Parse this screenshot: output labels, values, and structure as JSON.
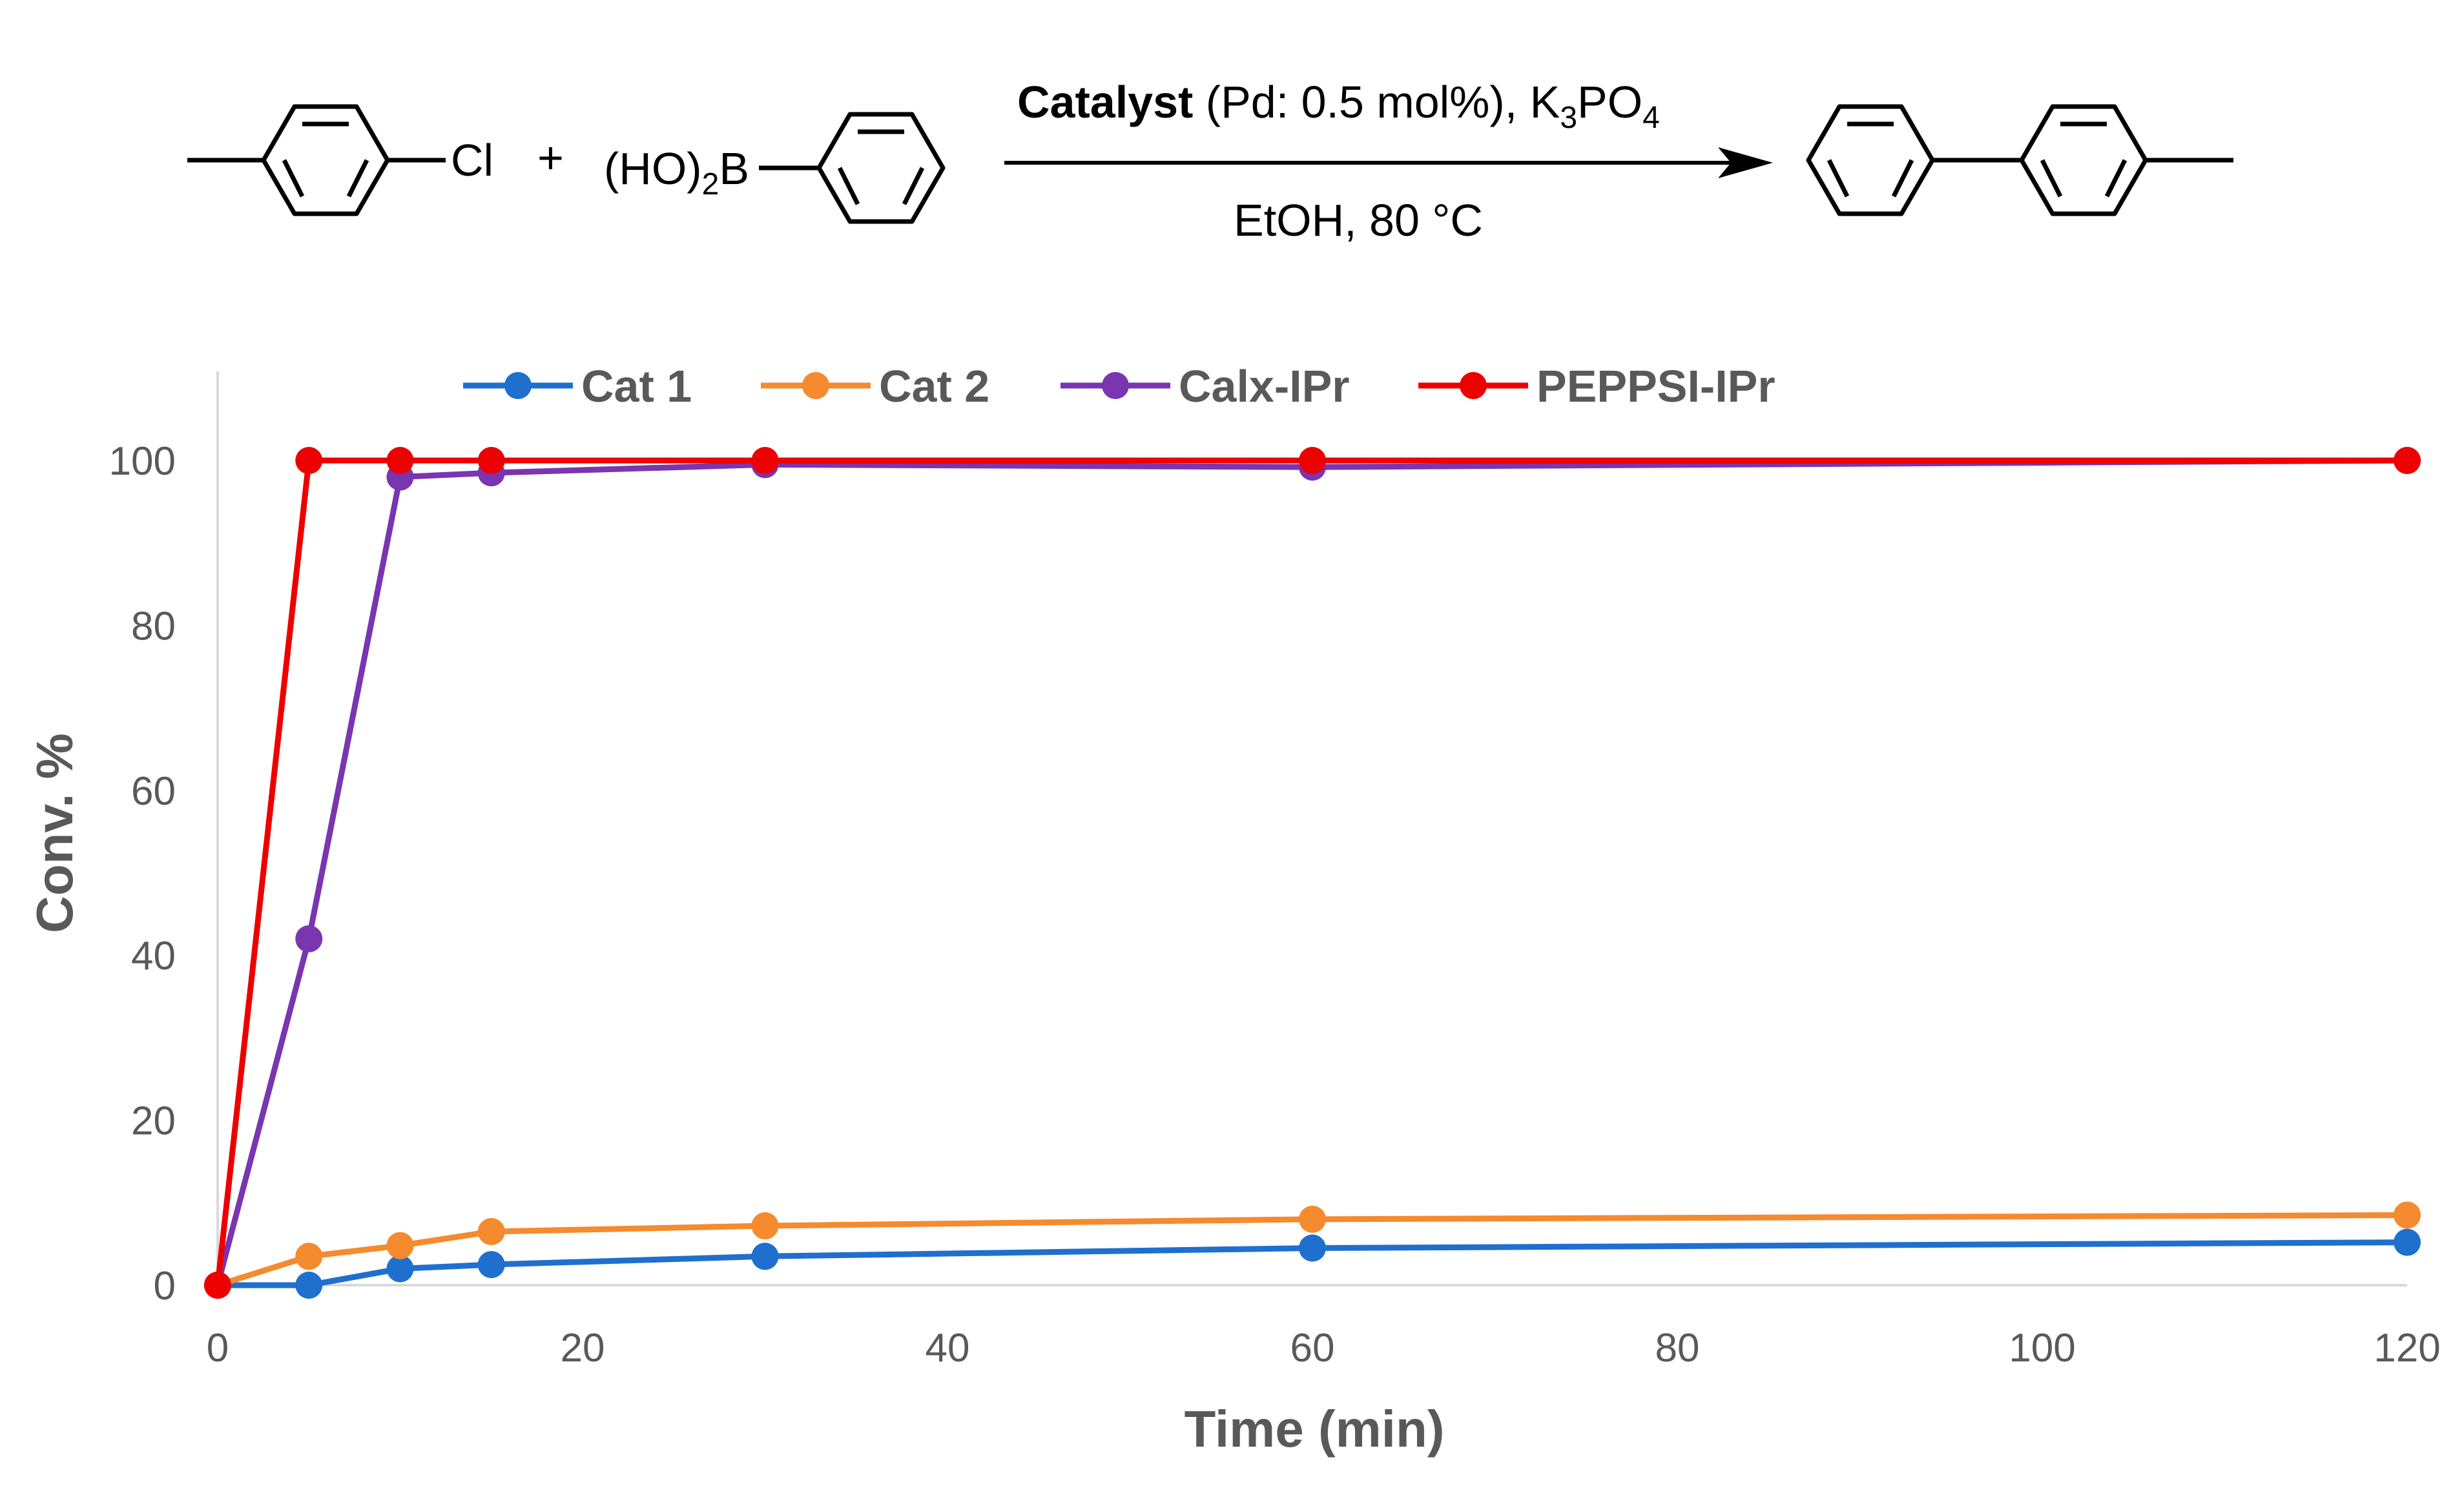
{
  "reaction": {
    "reactant1_label": "Cl",
    "plus": "+",
    "reactant2_prefix": "(HO)",
    "reactant2_sub": "2",
    "reactant2_suffix": "B",
    "condition_catalyst": "Catalyst",
    "condition_pd": " (Pd: 0.5 mol%), K",
    "condition_k_sub": "3",
    "condition_po": "PO",
    "condition_po_sub": "4",
    "condition_solvent": "EtOH, 80 °C"
  },
  "chart_data": {
    "type": "line",
    "title": "",
    "xlabel": "Time (min)",
    "ylabel": "Conv. %",
    "xlim": [
      0,
      120
    ],
    "ylim": [
      0,
      110
    ],
    "xticks": [
      0,
      20,
      40,
      60,
      80,
      100,
      120
    ],
    "yticks": [
      0,
      20,
      40,
      60,
      80,
      100
    ],
    "legend_position": "top",
    "grid": false,
    "x": [
      0,
      5,
      10,
      15,
      30,
      60,
      120
    ],
    "series": [
      {
        "name": "Cat 1",
        "color": "#1f6fcf",
        "values": [
          0,
          0,
          2,
          2.5,
          3.5,
          4.5,
          5.2
        ]
      },
      {
        "name": "Cat 2",
        "color": "#f58a2e",
        "values": [
          0,
          3.5,
          4.8,
          6.5,
          7.2,
          8,
          8.5
        ]
      },
      {
        "name": "Calx-IPr",
        "color": "#7a35b0",
        "values": [
          0,
          42,
          98,
          98.5,
          99.5,
          99.2,
          100
        ]
      },
      {
        "name": "PEPPSI-IPr",
        "color": "#ee0000",
        "values": [
          0,
          100,
          100,
          100,
          100,
          100,
          100
        ]
      }
    ]
  }
}
